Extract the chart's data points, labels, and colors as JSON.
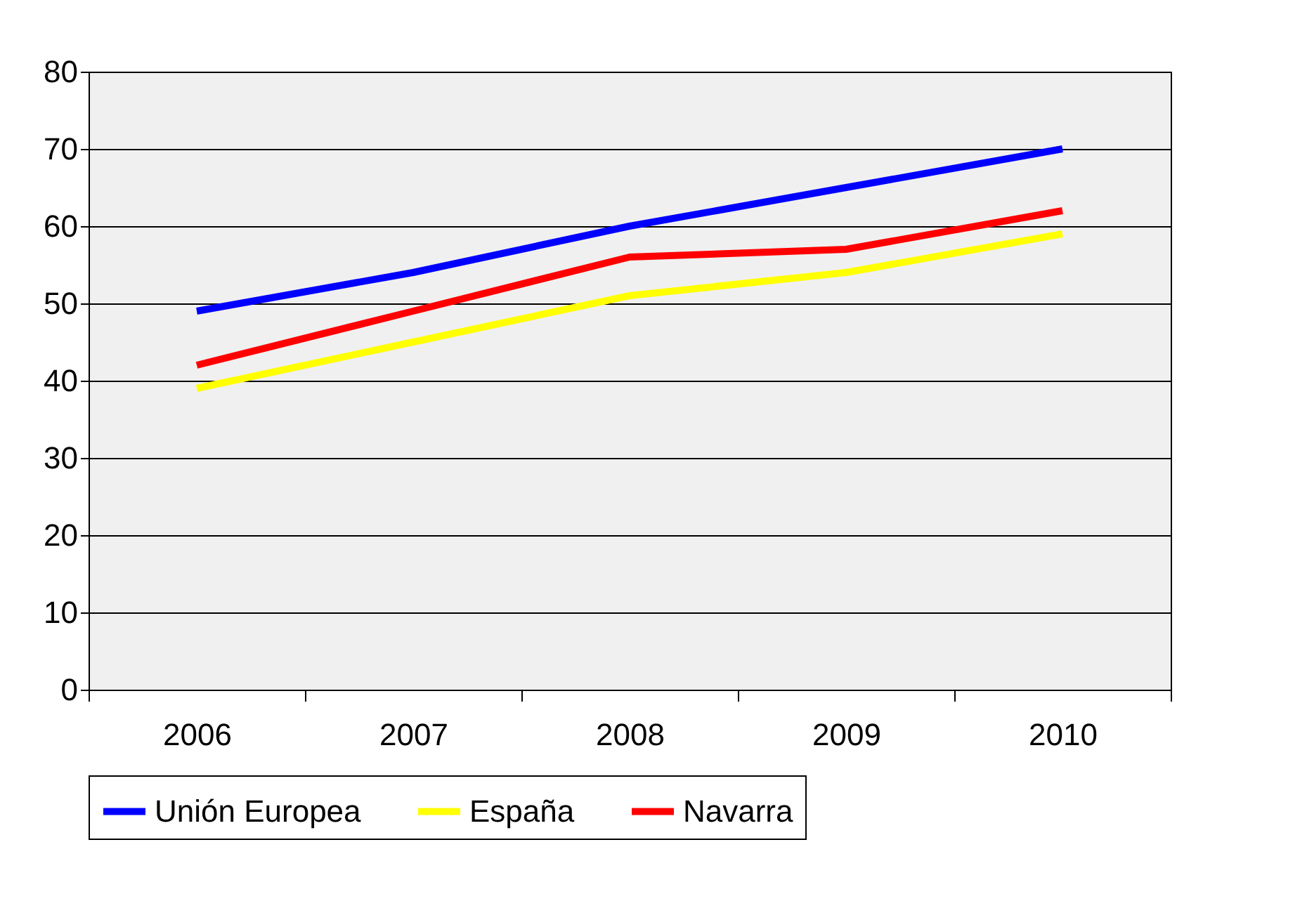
{
  "chart_data": {
    "type": "line",
    "categories": [
      "2006",
      "2007",
      "2008",
      "2009",
      "2010"
    ],
    "series": [
      {
        "name": "Unión Europea",
        "color": "#0000ff",
        "values": [
          49,
          54,
          60,
          65,
          70
        ]
      },
      {
        "name": "España",
        "color": "#ffff00",
        "values": [
          39,
          45,
          51,
          54,
          59
        ]
      },
      {
        "name": "Navarra",
        "color": "#ff0000",
        "values": [
          42,
          49,
          56,
          57,
          62
        ]
      }
    ],
    "ylim": [
      0,
      80
    ],
    "yticks": [
      0,
      10,
      20,
      30,
      40,
      50,
      60,
      70,
      80
    ],
    "grid": "y",
    "legend": "bottom",
    "marker": "none",
    "line_style": "solid"
  }
}
